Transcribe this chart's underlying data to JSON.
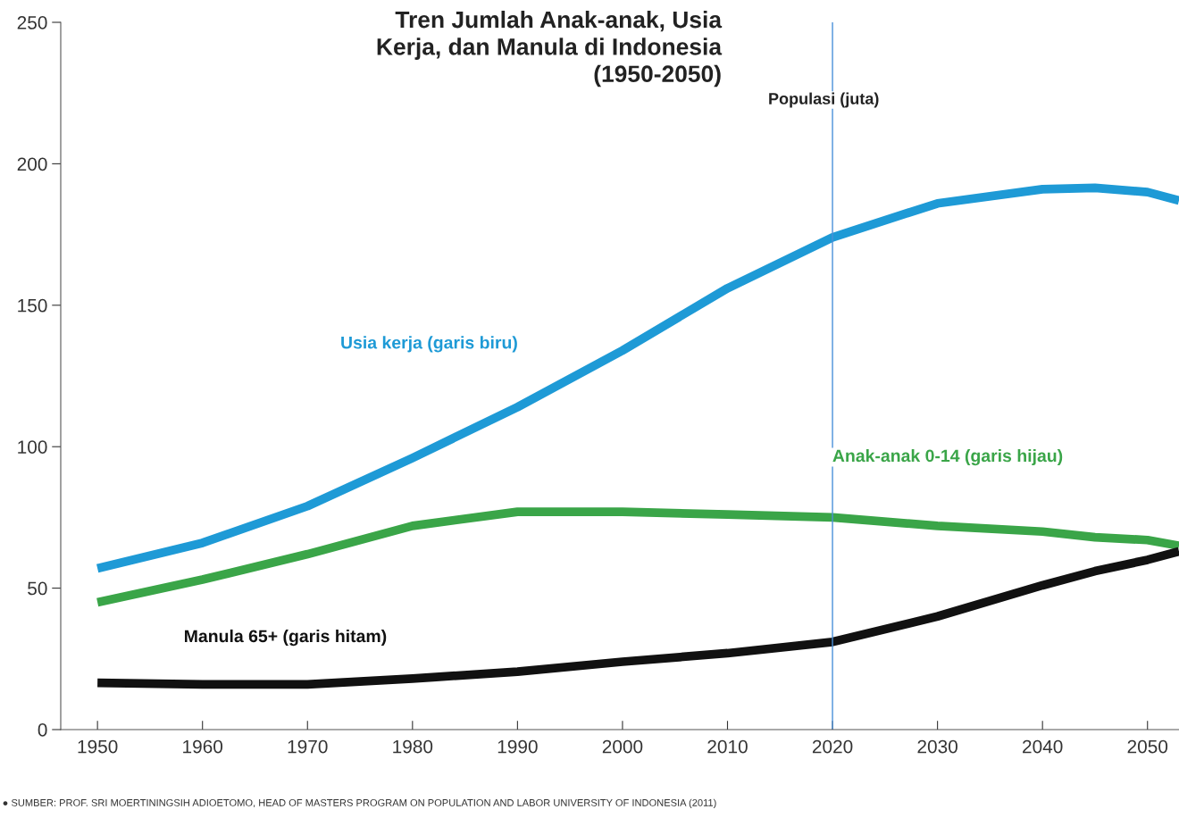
{
  "chart_data": {
    "type": "line",
    "title": "Tren Jumlah Anak-anak, Usia\nKerja, dan Manula di Indonesia\n(1950-2050)",
    "ylabel": "Populasi (juta)",
    "x": [
      1950,
      1960,
      1970,
      1980,
      1990,
      2000,
      2010,
      2020,
      2030,
      2040,
      2045,
      2050,
      2053
    ],
    "series": [
      {
        "name": "Usia kerja (garis biru)",
        "color": "#1e9ad6",
        "values": [
          57,
          66,
          79,
          96,
          114,
          134,
          156,
          174,
          186,
          191,
          191.5,
          190,
          187
        ]
      },
      {
        "name": "Anak-anak 0-14 (garis hijau)",
        "color": "#3aa548",
        "values": [
          45,
          53,
          62,
          72,
          77,
          77,
          76,
          75,
          72,
          70,
          68,
          67,
          65
        ]
      },
      {
        "name": "Manula 65+ (garis hitam)",
        "color": "#111111",
        "values": [
          16.5,
          16,
          16,
          18,
          20.5,
          24,
          27,
          31,
          40,
          51,
          56,
          60,
          63
        ]
      }
    ],
    "xlim": [
      1946.5,
      2053
    ],
    "ylim": [
      0,
      250
    ],
    "xticks": [
      1950,
      1960,
      1970,
      1980,
      1990,
      2000,
      2010,
      2020,
      2030,
      2040,
      2050
    ],
    "yticks": [
      0,
      50,
      100,
      150,
      200,
      250
    ],
    "ref_lines": [
      {
        "axis": "x",
        "value": 2020,
        "color": "#4a90d9"
      }
    ],
    "grid": false,
    "legend": false,
    "annotations": [
      "● SUMBER: PROF. SRI MOERTININGSIH ADIOETOMO, HEAD OF MASTERS PROGRAM ON POPULATION AND LABOR UNIVERSITY OF INDONESIA (2011)"
    ]
  }
}
